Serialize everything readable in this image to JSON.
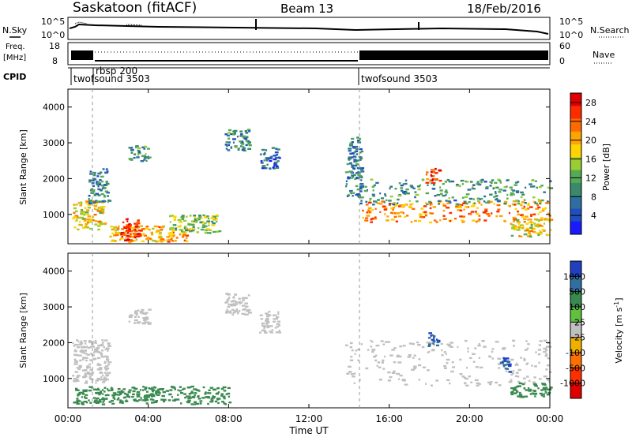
{
  "header": {
    "title": "Saskatoon (fitACF)",
    "beam": "Beam 13",
    "date": "18/Feb/2016"
  },
  "panels": {
    "nsky": {
      "left_label": "N.Sky",
      "right_label": "N.Search",
      "ticks_left": [
        "10^5",
        "10^0"
      ],
      "ticks_right": [
        "10^5",
        "10^0"
      ]
    },
    "freq": {
      "left_label_1": "Freq.",
      "left_label_2": "[MHz]",
      "ticks_left": [
        "18",
        "8"
      ],
      "ticks_right": [
        "60",
        "0"
      ],
      "right_label": "Nave"
    },
    "cpid": {
      "label": "CPID",
      "segments": [
        {
          "label": "twofsound 3503",
          "start_h": 0.0
        },
        {
          "label": "rbsp 200",
          "start_h": 1.0
        },
        {
          "label": "twofsound 3503",
          "start_h": 14.5
        }
      ]
    }
  },
  "chart_data": [
    {
      "type": "heatmap",
      "title": "",
      "xlabel": "",
      "ylabel": "Slant Range [km]",
      "x_range_hours": [
        0,
        24
      ],
      "ylim": [
        180,
        4500
      ],
      "y_ticks": [
        "1000",
        "2000",
        "3000",
        "4000"
      ],
      "colorbar": {
        "label": "Power [dB]",
        "ticks": [
          "4",
          "8",
          "12",
          "16",
          "20",
          "24",
          "28"
        ],
        "range": [
          0,
          30
        ],
        "colors": [
          "#1a1aff",
          "#1f4fbf",
          "#2f6f9f",
          "#3a8a6a",
          "#55aa55",
          "#9acd32",
          "#ffd400",
          "#ffa500",
          "#ff6a00",
          "#ff2a00",
          "#e00000"
        ]
      },
      "regions": [
        {
          "x": [
            0.2,
            1.8
          ],
          "y": [
            600,
            1400
          ],
          "value": 18
        },
        {
          "x": [
            1.0,
            2.0
          ],
          "y": [
            1300,
            2300
          ],
          "value": 8
        },
        {
          "x": [
            2.0,
            6.0
          ],
          "y": [
            250,
            700
          ],
          "value": 20
        },
        {
          "x": [
            2.6,
            3.6
          ],
          "y": [
            300,
            900
          ],
          "value": 26
        },
        {
          "x": [
            3.0,
            4.0
          ],
          "y": [
            2500,
            2950
          ],
          "value": 10
        },
        {
          "x": [
            5.0,
            7.5
          ],
          "y": [
            500,
            1000
          ],
          "value": 14
        },
        {
          "x": [
            7.8,
            9.0
          ],
          "y": [
            2800,
            3400
          ],
          "value": 9
        },
        {
          "x": [
            9.5,
            10.5
          ],
          "y": [
            2300,
            2900
          ],
          "value": 6
        },
        {
          "x": [
            13.8,
            14.6
          ],
          "y": [
            1500,
            3200
          ],
          "value": 8
        },
        {
          "x": [
            14.5,
            24.0
          ],
          "y": [
            800,
            1400
          ],
          "value": 22
        },
        {
          "x": [
            14.5,
            24.0
          ],
          "y": [
            1300,
            2000
          ],
          "value": 10
        },
        {
          "x": [
            17.8,
            18.5
          ],
          "y": [
            1900,
            2300
          ],
          "value": 26
        },
        {
          "x": [
            22.0,
            24.0
          ],
          "y": [
            400,
            900
          ],
          "value": 18
        }
      ]
    },
    {
      "type": "heatmap",
      "title": "",
      "xlabel": "Time UT",
      "ylabel": "Slant Range [km]",
      "x_range_hours": [
        0,
        24
      ],
      "x_ticks": [
        "00:00",
        "04:00",
        "08:00",
        "12:00",
        "16:00",
        "20:00",
        "00:00"
      ],
      "ylim": [
        180,
        4500
      ],
      "y_ticks": [
        "1000",
        "2000",
        "3000",
        "4000"
      ],
      "colorbar": {
        "label": "Velocity [m s^-1]",
        "ticks": [
          "1000",
          "500",
          "100",
          "25",
          "-25",
          "-100",
          "-500",
          "-1000"
        ],
        "colors": [
          "#2040c0",
          "#3070a0",
          "#3a8a50",
          "#60c040",
          "#c0c0c0",
          "#f0b000",
          "#ff7000",
          "#ff3000",
          "#e00000"
        ]
      },
      "regions": [
        {
          "x": [
            0.2,
            2.0
          ],
          "y": [
            900,
            2100
          ],
          "value": 0
        },
        {
          "x": [
            0.2,
            2.0
          ],
          "y": [
            300,
            800
          ],
          "value": 150
        },
        {
          "x": [
            2.0,
            8.0
          ],
          "y": [
            300,
            800
          ],
          "value": 200
        },
        {
          "x": [
            3.0,
            4.0
          ],
          "y": [
            2500,
            2950
          ],
          "value": 0
        },
        {
          "x": [
            7.8,
            9.0
          ],
          "y": [
            2800,
            3400
          ],
          "value": 0
        },
        {
          "x": [
            9.5,
            10.5
          ],
          "y": [
            2300,
            2900
          ],
          "value": 0
        },
        {
          "x": [
            13.8,
            24.0
          ],
          "y": [
            800,
            2100
          ],
          "value": 0
        },
        {
          "x": [
            17.9,
            18.4
          ],
          "y": [
            1900,
            2300
          ],
          "value": 700
        },
        {
          "x": [
            21.5,
            22.0
          ],
          "y": [
            1200,
            1600
          ],
          "value": 700
        },
        {
          "x": [
            22.0,
            24.0
          ],
          "y": [
            500,
            900
          ],
          "value": 150
        }
      ]
    }
  ]
}
